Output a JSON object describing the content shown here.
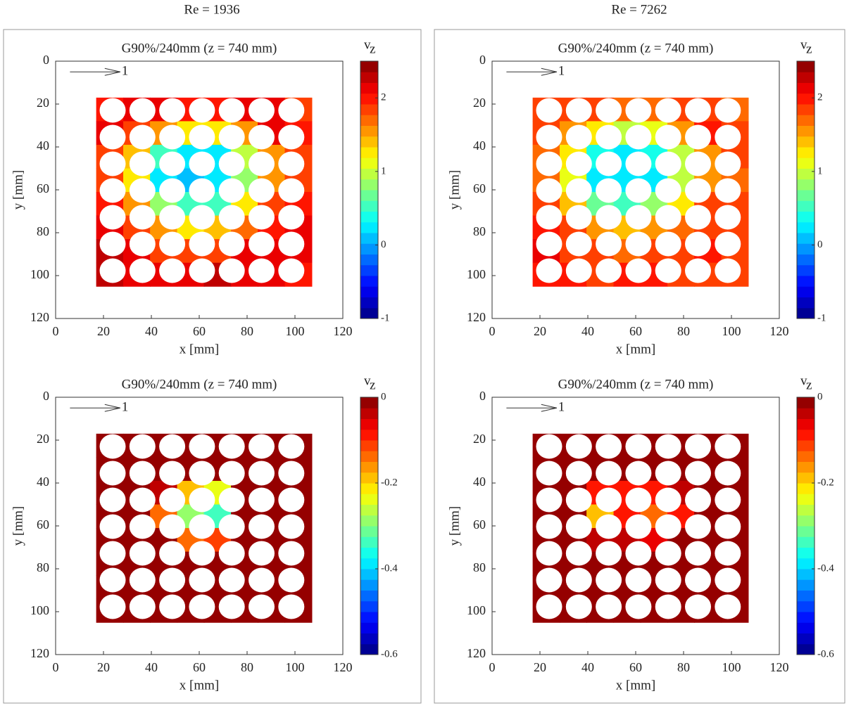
{
  "column_titles": [
    "Re = 1936",
    "Re = 7262"
  ],
  "chart_data": [
    {
      "type": "heatmap",
      "title": "G90%/240mm (z = 740 mm)",
      "xlabel": "x [mm]",
      "ylabel": "y [mm]",
      "colorbar_label": "v",
      "colorbar_label_sub": "z",
      "reference_label": "1",
      "xlim": [
        0,
        120
      ],
      "ylim": [
        0,
        120
      ],
      "y_reversed": true,
      "xticks": [
        0,
        20,
        40,
        60,
        80,
        100,
        120
      ],
      "yticks": [
        0,
        20,
        40,
        60,
        80,
        100,
        120
      ],
      "clim": [
        -1,
        2.5
      ],
      "cticks": [
        -1,
        0,
        1,
        2
      ],
      "colormap": "jet",
      "levels": 24,
      "x": [
        22.6,
        33.9,
        45.1,
        56.4,
        67.6,
        78.9,
        90.1,
        101.4
      ],
      "y": [
        22.5,
        33.5,
        44.5,
        55.5,
        66.5,
        77.5,
        88.5,
        99.5
      ],
      "values": [
        [
          2.0,
          2.1,
          2.2,
          2.0,
          2.0,
          2.1,
          2.2,
          1.8
        ],
        [
          2.1,
          1.8,
          1.5,
          1.2,
          1.2,
          1.6,
          2.1,
          2.0
        ],
        [
          1.9,
          1.4,
          0.6,
          0.2,
          0.3,
          0.9,
          1.6,
          1.9
        ],
        [
          1.9,
          1.3,
          0.3,
          0.1,
          0.2,
          0.8,
          1.5,
          1.8
        ],
        [
          2.0,
          1.5,
          0.8,
          0.5,
          0.6,
          1.2,
          1.8,
          2.0
        ],
        [
          2.2,
          1.9,
          1.5,
          1.3,
          1.4,
          1.7,
          2.0,
          2.1
        ],
        [
          2.3,
          2.1,
          1.9,
          1.8,
          1.9,
          2.1,
          2.2,
          2.2
        ],
        [
          2.3,
          2.2,
          2.1,
          2.2,
          2.3,
          2.2,
          2.1,
          2.0
        ]
      ]
    },
    {
      "type": "heatmap",
      "title": "G90%/240mm (z = 740 mm)",
      "xlabel": "x [mm]",
      "ylabel": "y [mm]",
      "colorbar_label": "v",
      "colorbar_label_sub": "z",
      "reference_label": "1",
      "xlim": [
        0,
        120
      ],
      "ylim": [
        0,
        120
      ],
      "y_reversed": true,
      "xticks": [
        0,
        20,
        40,
        60,
        80,
        100,
        120
      ],
      "yticks": [
        0,
        20,
        40,
        60,
        80,
        100,
        120
      ],
      "clim": [
        -1,
        2.5
      ],
      "cticks": [
        -1,
        0,
        1,
        2
      ],
      "colormap": "jet",
      "levels": 24,
      "x": [
        22.6,
        33.9,
        45.1,
        56.4,
        67.6,
        78.9,
        90.1,
        101.4
      ],
      "y": [
        22.5,
        33.5,
        44.5,
        55.5,
        66.5,
        77.5,
        88.5,
        99.5
      ],
      "values": [
        [
          1.8,
          1.9,
          1.8,
          1.7,
          1.7,
          1.8,
          1.9,
          1.7
        ],
        [
          1.9,
          1.6,
          1.3,
          1.0,
          1.1,
          1.5,
          2.0,
          1.9
        ],
        [
          1.7,
          1.2,
          0.4,
          0.3,
          0.4,
          0.9,
          1.6,
          1.8
        ],
        [
          1.7,
          1.1,
          0.3,
          0.2,
          0.3,
          0.9,
          1.5,
          1.7
        ],
        [
          1.8,
          1.4,
          0.7,
          0.6,
          0.8,
          1.3,
          1.8,
          1.9
        ],
        [
          2.0,
          1.8,
          1.5,
          1.4,
          1.5,
          1.7,
          1.9,
          1.9
        ],
        [
          2.1,
          1.9,
          1.8,
          1.7,
          1.8,
          1.9,
          2.0,
          1.9
        ],
        [
          2.0,
          2.0,
          1.9,
          2.0,
          2.0,
          1.9,
          1.9,
          1.8
        ]
      ]
    },
    {
      "type": "heatmap",
      "title": "G90%/240mm (z = 740 mm)",
      "xlabel": "x [mm]",
      "ylabel": "y [mm]",
      "colorbar_label": "v",
      "colorbar_label_sub": "z",
      "reference_label": "1",
      "xlim": [
        0,
        120
      ],
      "ylim": [
        0,
        120
      ],
      "y_reversed": true,
      "xticks": [
        0,
        20,
        40,
        60,
        80,
        100,
        120
      ],
      "yticks": [
        0,
        20,
        40,
        60,
        80,
        100,
        120
      ],
      "clim": [
        -0.6,
        0
      ],
      "cticks": [
        -0.6,
        -0.4,
        -0.2,
        0
      ],
      "colormap": "jet",
      "levels": 24,
      "x": [
        22.6,
        33.9,
        45.1,
        56.4,
        67.6,
        78.9,
        90.1,
        101.4
      ],
      "y": [
        22.5,
        33.5,
        44.5,
        55.5,
        66.5,
        77.5,
        88.5,
        99.5
      ],
      "values": [
        [
          0,
          0,
          0,
          0,
          0,
          0,
          0,
          0
        ],
        [
          0,
          0,
          0,
          0,
          0,
          0,
          0,
          0
        ],
        [
          0,
          0,
          -0.05,
          -0.2,
          -0.25,
          0,
          0,
          0
        ],
        [
          0,
          0,
          -0.15,
          -0.3,
          -0.35,
          -0.02,
          0,
          0
        ],
        [
          0,
          0,
          -0.02,
          -0.15,
          -0.12,
          0,
          0,
          0
        ],
        [
          0,
          0,
          0,
          0,
          0,
          0,
          0,
          0
        ],
        [
          0,
          0,
          0,
          0,
          0,
          0,
          0,
          0
        ],
        [
          0,
          0,
          0,
          0,
          0,
          0,
          0,
          0
        ]
      ]
    },
    {
      "type": "heatmap",
      "title": "G90%/240mm (z = 740 mm)",
      "xlabel": "x [mm]",
      "ylabel": "y [mm]",
      "colorbar_label": "v",
      "colorbar_label_sub": "z",
      "reference_label": "1",
      "xlim": [
        0,
        120
      ],
      "ylim": [
        0,
        120
      ],
      "y_reversed": true,
      "xticks": [
        0,
        20,
        40,
        60,
        80,
        100,
        120
      ],
      "yticks": [
        0,
        20,
        40,
        60,
        80,
        100,
        120
      ],
      "clim": [
        -0.6,
        0
      ],
      "cticks": [
        -0.6,
        -0.4,
        -0.2,
        0
      ],
      "colormap": "jet",
      "levels": 24,
      "x": [
        22.6,
        33.9,
        45.1,
        56.4,
        67.6,
        78.9,
        90.1,
        101.4
      ],
      "y": [
        22.5,
        33.5,
        44.5,
        55.5,
        66.5,
        77.5,
        88.5,
        99.5
      ],
      "values": [
        [
          0,
          0,
          0,
          0,
          0,
          0,
          0,
          0
        ],
        [
          0,
          0,
          0,
          0,
          0,
          0,
          0,
          0
        ],
        [
          0,
          0,
          -0.1,
          -0.08,
          -0.1,
          -0.05,
          0,
          0
        ],
        [
          0,
          0,
          -0.2,
          -0.1,
          -0.15,
          -0.1,
          0,
          0
        ],
        [
          0,
          0,
          -0.05,
          -0.04,
          -0.06,
          0,
          0,
          0
        ],
        [
          0,
          0,
          0,
          0,
          0,
          0,
          0,
          0
        ],
        [
          0,
          0,
          0,
          0,
          0,
          0,
          0,
          0
        ],
        [
          0,
          0,
          0,
          0,
          0,
          0,
          0,
          0
        ]
      ]
    }
  ]
}
